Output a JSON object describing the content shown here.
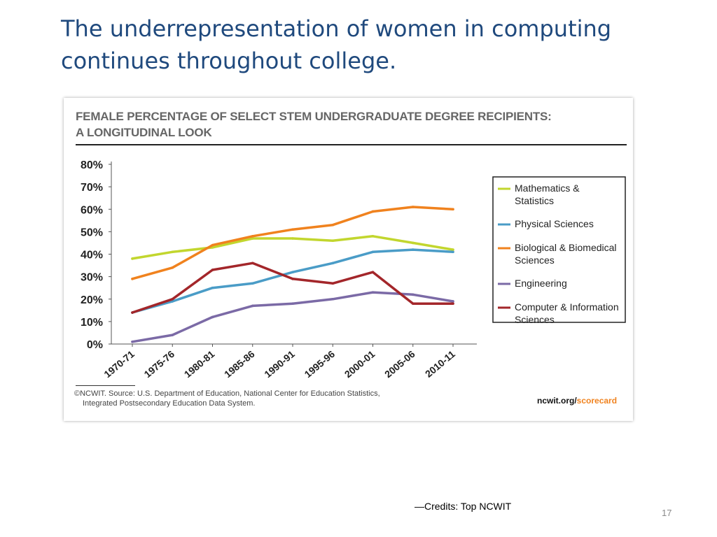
{
  "slide": {
    "title_line1": "The underrepresentation of women in computing",
    "title_line2": "continues throughout college.",
    "credits": "—Credits: Top NCWIT",
    "page_number": "17"
  },
  "card": {
    "title_line1": "FEMALE PERCENTAGE OF SELECT STEM UNDERGRADUATE DEGREE RECIPIENTS:",
    "title_line2": "A LONGITUDINAL LOOK",
    "source_line1": "©NCWIT. Source: U.S. Department of Education, National Center for Education Statistics,",
    "source_line2": "Integrated Postsecondary Education Data System.",
    "brand_main": "ncwit.org/",
    "brand_accent": "scorecard",
    "brand_accent_color": "#f0821e"
  },
  "chart_data": {
    "type": "line",
    "title": "FEMALE PERCENTAGE OF SELECT STEM UNDERGRADUATE DEGREE RECIPIENTS: A LONGITUDINAL LOOK",
    "xlabel": "",
    "ylabel": "",
    "categories": [
      "1970-71",
      "1975-76",
      "1980-81",
      "1985-86",
      "1990-91",
      "1995-96",
      "2000-01",
      "2005-06",
      "2010-11"
    ],
    "ylim": [
      0,
      80
    ],
    "yticks": [
      "0%",
      "10%",
      "20%",
      "30%",
      "40%",
      "50%",
      "60%",
      "70%",
      "80%"
    ],
    "grid": false,
    "legend_position": "right",
    "series": [
      {
        "name": "Mathematics & Statistics",
        "color": "#c2d62e",
        "values": [
          38,
          41,
          43,
          47,
          47,
          46,
          48,
          45,
          42
        ]
      },
      {
        "name": "Physical Sciences",
        "color": "#4a9cc7",
        "values": [
          14,
          19,
          25,
          27,
          32,
          36,
          41,
          42,
          41
        ]
      },
      {
        "name": "Biological & Biomedical Sciences",
        "color": "#f0821e",
        "values": [
          29,
          34,
          44,
          48,
          51,
          53,
          59,
          61,
          60
        ]
      },
      {
        "name": "Engineering",
        "color": "#7b6aa6",
        "values": [
          1,
          4,
          12,
          17,
          18,
          20,
          23,
          22,
          19
        ]
      },
      {
        "name": "Computer & Information Sciences",
        "color": "#a3262a",
        "values": [
          14,
          20,
          33,
          36,
          29,
          27,
          32,
          18,
          18
        ]
      }
    ]
  }
}
